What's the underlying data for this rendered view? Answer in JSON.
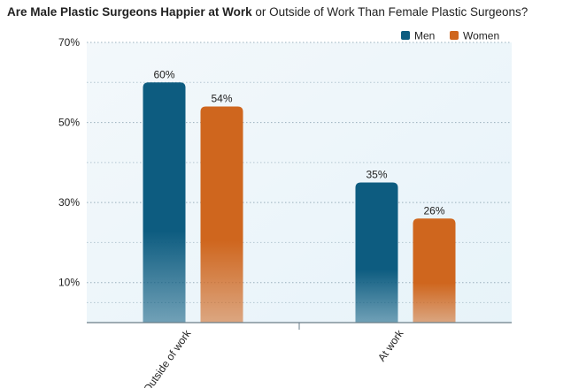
{
  "title_bold": "Are Male Plastic Surgeons Happier at Work",
  "title_rest": " or Outside of Work Than Female Plastic Surgeons?",
  "chart_data": {
    "type": "bar",
    "title": "Are Male Plastic Surgeons Happier at Work or Outside of Work Than Female Plastic Surgeons?",
    "categories": [
      "Outside of work",
      "At work"
    ],
    "series": [
      {
        "name": "Men",
        "values": [
          60,
          35
        ],
        "color": "#0d5c80"
      },
      {
        "name": "Women",
        "values": [
          54,
          26
        ],
        "color": "#cf661e"
      }
    ],
    "value_labels": [
      [
        "60%",
        "35%"
      ],
      [
        "54%",
        "26%"
      ]
    ],
    "yticks": [
      10,
      30,
      50,
      70
    ],
    "ytick_labels": [
      "10%",
      "30%",
      "50%",
      "70%"
    ],
    "ylim": [
      0,
      70
    ],
    "grid": true,
    "legend_position": "top-right",
    "xlabel": "",
    "ylabel": ""
  }
}
